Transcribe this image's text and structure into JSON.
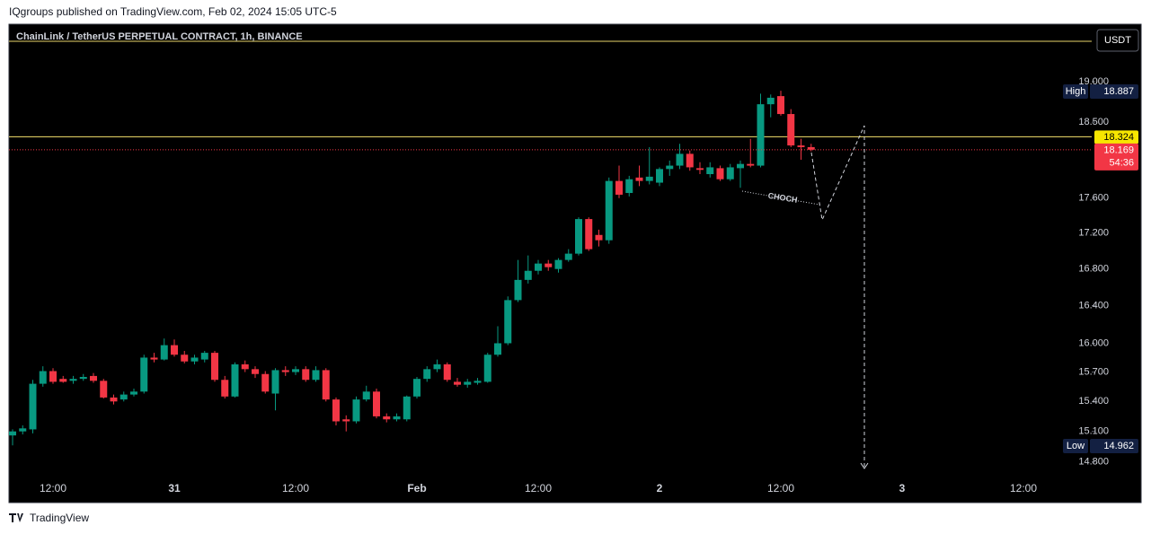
{
  "header": "IQgroups published on TradingView.com, Feb 02, 2024 15:05 UTC-5",
  "footer": "TradingView",
  "chart_data": {
    "type": "candlestick",
    "title": "ChainLink / TetherUS PERPETUAL CONTRACT, 1h, BINANCE",
    "currency": "USDT",
    "log_scale": true,
    "up_color": "#089981",
    "down_color": "#f23645",
    "ylim": [
      14.65,
      19.73
    ],
    "yticks": [
      {
        "value": 14.8,
        "label": "14.800"
      },
      {
        "value": 15.1,
        "label": "15.100"
      },
      {
        "value": 15.4,
        "label": "15.400"
      },
      {
        "value": 15.7,
        "label": "15.700"
      },
      {
        "value": 16.0,
        "label": "16.000"
      },
      {
        "value": 16.4,
        "label": "16.400"
      },
      {
        "value": 16.8,
        "label": "16.800"
      },
      {
        "value": 17.2,
        "label": "17.200"
      },
      {
        "value": 17.6,
        "label": "17.600"
      },
      {
        "value": 18.5,
        "label": "18.500"
      },
      {
        "value": 19.0,
        "label": "19.000"
      }
    ],
    "categories": [
      null,
      null,
      null,
      null,
      "12:00",
      null,
      null,
      null,
      null,
      null,
      null,
      null,
      null,
      null,
      null,
      null,
      "31",
      null,
      null,
      null,
      null,
      null,
      null,
      null,
      null,
      null,
      null,
      null,
      "12:00",
      null,
      null,
      null,
      null,
      null,
      null,
      null,
      null,
      null,
      null,
      null,
      "Feb",
      null,
      null,
      null,
      null,
      null,
      null,
      null,
      null,
      null,
      null,
      null,
      "12:00",
      null,
      null,
      null,
      null,
      null,
      null,
      null,
      null,
      null,
      null,
      null,
      "2",
      null,
      null,
      null,
      null,
      null,
      null,
      null,
      null,
      null,
      null,
      null,
      "12:00",
      null,
      null,
      null,
      null,
      null,
      null,
      null,
      null,
      null,
      null,
      null,
      "3",
      null,
      null,
      null,
      null,
      null,
      null,
      null,
      null,
      null,
      null,
      null,
      "12:00"
    ],
    "open": [
      15.06,
      15.1,
      15.12,
      15.58,
      15.71,
      15.63,
      15.61,
      15.63,
      15.66,
      15.61,
      15.44,
      15.42,
      15.47,
      15.5,
      15.85,
      15.83,
      15.98,
      15.88,
      15.81,
      15.83,
      15.9,
      15.62,
      15.45,
      15.78,
      15.73,
      15.68,
      15.48,
      15.72,
      15.7,
      15.73,
      15.62,
      15.72,
      15.42,
      15.22,
      15.2,
      15.42,
      15.5,
      15.25,
      15.22,
      15.22,
      15.45,
      15.63,
      15.73,
      15.78,
      15.6,
      15.57,
      15.59,
      15.6,
      15.88,
      16.0,
      16.46,
      16.68,
      16.78,
      16.86,
      16.8,
      16.9,
      16.97,
      17.36,
      17.18,
      17.12,
      17.8,
      17.66,
      17.84,
      17.8,
      17.78,
      17.94,
      17.98,
      18.12,
      17.95,
      17.88,
      17.95,
      17.82,
      17.95,
      18.0,
      17.98,
      18.72,
      18.82,
      18.6,
      18.22,
      18.2,
      null,
      null,
      null,
      null,
      null,
      null,
      null,
      null,
      null,
      null,
      null,
      null,
      null,
      null,
      null,
      null,
      null,
      null,
      null,
      null,
      null
    ],
    "high": [
      15.12,
      15.16,
      15.62,
      15.76,
      15.74,
      15.66,
      15.66,
      15.68,
      15.69,
      15.63,
      15.47,
      15.5,
      15.53,
      15.88,
      15.9,
      16.05,
      16.04,
      15.92,
      15.88,
      15.92,
      15.92,
      15.66,
      15.8,
      15.82,
      15.76,
      15.71,
      15.74,
      15.76,
      15.76,
      15.76,
      15.76,
      15.74,
      15.44,
      15.26,
      15.45,
      15.56,
      15.53,
      15.28,
      15.28,
      15.46,
      15.65,
      15.76,
      15.83,
      15.8,
      15.64,
      15.63,
      15.64,
      15.9,
      16.18,
      16.5,
      16.9,
      16.95,
      16.9,
      16.9,
      16.92,
      17.02,
      17.38,
      17.38,
      17.24,
      17.84,
      17.98,
      17.86,
      17.98,
      18.2,
      17.96,
      18.04,
      18.24,
      18.16,
      18.02,
      18.02,
      17.98,
      18.0,
      18.04,
      18.3,
      18.85,
      18.84,
      18.887,
      18.66,
      18.3,
      18.24,
      null,
      null,
      null,
      null,
      null,
      null,
      null,
      null,
      null,
      null,
      null,
      null,
      null,
      null,
      null,
      null,
      null,
      null,
      null,
      null,
      null
    ],
    "low": [
      14.962,
      15.07,
      15.08,
      15.55,
      15.58,
      15.59,
      15.58,
      15.61,
      15.59,
      15.43,
      15.37,
      15.4,
      15.45,
      15.48,
      15.8,
      15.82,
      15.86,
      15.79,
      15.78,
      15.8,
      15.6,
      15.43,
      15.44,
      15.7,
      15.64,
      15.48,
      15.31,
      15.66,
      15.67,
      15.6,
      15.6,
      15.4,
      15.16,
      15.1,
      15.18,
      15.4,
      15.23,
      15.19,
      15.2,
      15.2,
      15.43,
      15.6,
      15.7,
      15.6,
      15.55,
      15.54,
      15.57,
      15.59,
      15.86,
      15.98,
      16.44,
      16.64,
      16.74,
      16.78,
      16.76,
      16.88,
      16.95,
      17.0,
      17.05,
      17.08,
      17.6,
      17.62,
      17.74,
      17.76,
      17.74,
      17.86,
      17.94,
      17.92,
      17.88,
      17.84,
      17.8,
      17.8,
      17.72,
      17.96,
      17.96,
      18.56,
      18.58,
      18.2,
      18.05,
      18.15,
      null,
      null,
      null,
      null,
      null,
      null,
      null,
      null,
      null,
      null,
      null,
      null,
      null,
      null,
      null,
      null,
      null,
      null,
      null,
      null,
      null
    ],
    "close": [
      15.1,
      15.13,
      15.58,
      15.71,
      15.6,
      15.6,
      15.63,
      15.65,
      15.61,
      15.44,
      15.4,
      15.47,
      15.5,
      15.85,
      15.83,
      15.98,
      15.88,
      15.81,
      15.85,
      15.9,
      15.62,
      15.45,
      15.78,
      15.73,
      15.68,
      15.5,
      15.72,
      15.7,
      15.73,
      15.62,
      15.72,
      15.42,
      15.2,
      15.2,
      15.42,
      15.5,
      15.25,
      15.22,
      15.25,
      15.45,
      15.63,
      15.73,
      15.78,
      15.62,
      15.57,
      15.6,
      15.61,
      15.88,
      16.0,
      16.46,
      16.68,
      16.78,
      16.86,
      16.82,
      16.9,
      16.97,
      17.36,
      17.02,
      17.12,
      17.8,
      17.64,
      17.82,
      17.8,
      17.85,
      17.94,
      17.98,
      18.12,
      17.96,
      17.93,
      17.96,
      17.82,
      17.96,
      18.0,
      17.98,
      18.72,
      18.8,
      18.6,
      18.22,
      18.2,
      18.169,
      null,
      null,
      null,
      null,
      null,
      null,
      null,
      null,
      null,
      null,
      null,
      null,
      null,
      null,
      null,
      null,
      null,
      null,
      null,
      null,
      null
    ],
    "high_label": "High",
    "low_label": "Low",
    "horizontal_line": 18.324,
    "countdown": "54:36",
    "annotation": "CHOCH"
  }
}
